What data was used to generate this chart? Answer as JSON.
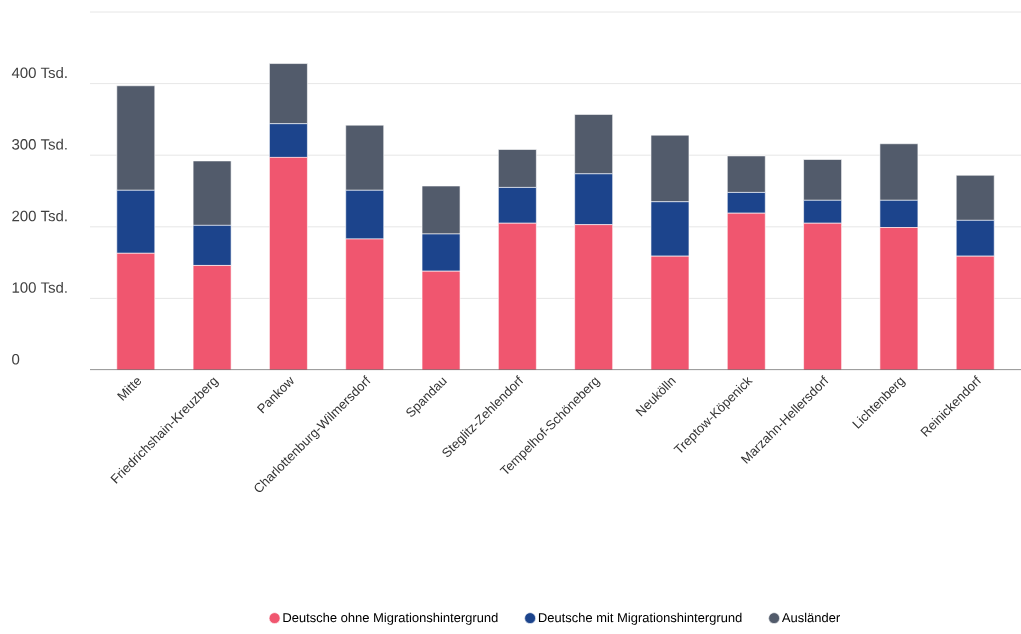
{
  "chart_data": {
    "type": "bar",
    "stacked": true,
    "grid": "y",
    "legend": "bottom",
    "categories": [
      "Mitte",
      "Friedrichshain-Kreuzberg",
      "Pankow",
      "Charlottenburg-Wilmersdorf",
      "Spandau",
      "Steglitz-Zehlendorf",
      "Tempelhof-Schöneberg",
      "Neukölln",
      "Treptow-Köpenick",
      "Marzahn-Hellersdorf",
      "Lichtenberg",
      "Reinickendorf"
    ],
    "series": [
      {
        "name": "Deutsche ohne Migrationshintergrund",
        "color": "#f0566f",
        "values": [
          163,
          146,
          297,
          183,
          138,
          205,
          203,
          159,
          219,
          205,
          199,
          159
        ]
      },
      {
        "name": "Deutsche mit Migrationshintergrund",
        "color": "#1c448c",
        "values": [
          88,
          56,
          47,
          68,
          52,
          50,
          71,
          76,
          29,
          32,
          38,
          50
        ]
      },
      {
        "name": "Ausländer",
        "color": "#525b6b",
        "values": [
          146,
          90,
          84,
          91,
          67,
          53,
          83,
          93,
          51,
          57,
          79,
          63
        ]
      }
    ],
    "ylim": [
      0,
      500
    ],
    "yticks": [
      0,
      {
        "value": 100,
        "label": "100 Tsd."
      },
      {
        "value": 200,
        "label": "200 Tsd."
      },
      {
        "value": 300,
        "label": "300 Tsd."
      },
      {
        "value": 400,
        "label": "400 Tsd."
      },
      {
        "value": 500,
        "label": null
      }
    ]
  }
}
